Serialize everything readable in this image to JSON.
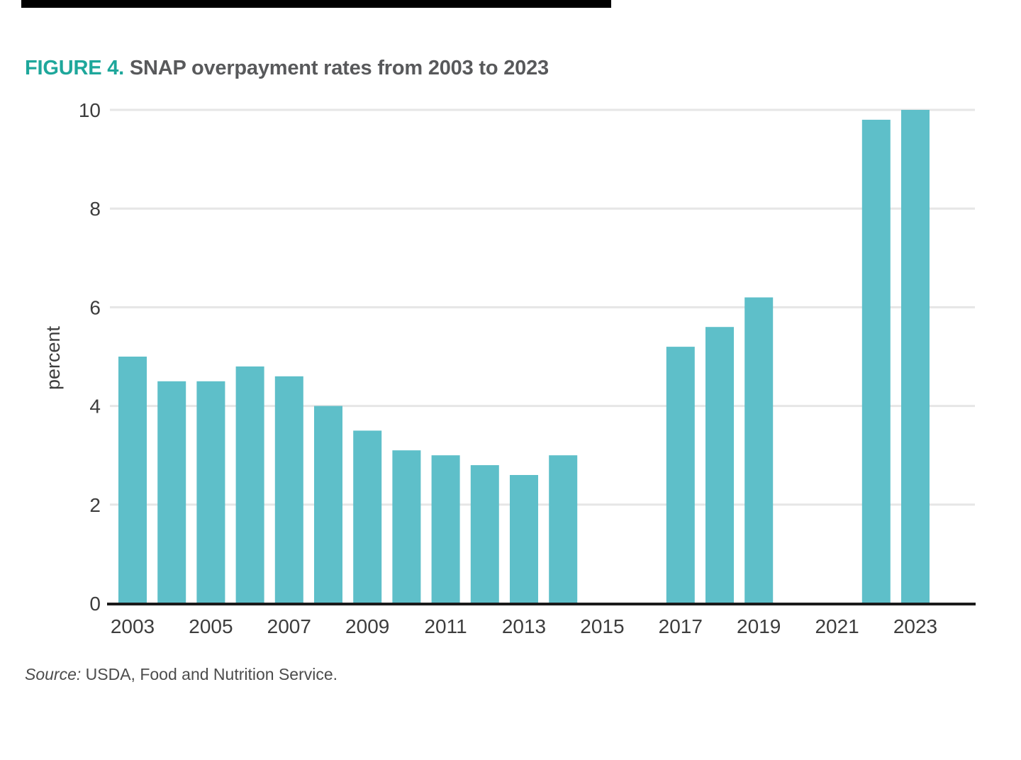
{
  "page": {
    "title_prefix": "FIGURE 4.",
    "title_text": " SNAP overpayment rates from 2003 to 2023",
    "source_prefix": "Source:",
    "source_text": " USDA, Food and Nutrition Service."
  },
  "colors": {
    "accent_teal": "#1ea79b",
    "title_gray": "#58595b",
    "bar_fill": "#5ebfc9",
    "axis_text": "#3d3d3d",
    "gridline": "#e6e6e6",
    "axis_line": "#1a1a1a",
    "top_rule": "#000000"
  },
  "chart_data": {
    "type": "bar",
    "title": "SNAP overpayment rates from 2003 to 2023",
    "xlabel": "",
    "ylabel": "percent",
    "ylim": [
      0,
      10
    ],
    "yticks": [
      0,
      2,
      4,
      6,
      8,
      10
    ],
    "xtick_labels": [
      "2003",
      "2005",
      "2007",
      "2009",
      "2011",
      "2013",
      "2015",
      "2017",
      "2019",
      "2021",
      "2023"
    ],
    "grid": true,
    "legend": false,
    "categories": [
      2003,
      2004,
      2005,
      2006,
      2007,
      2008,
      2009,
      2010,
      2011,
      2012,
      2013,
      2014,
      2015,
      2016,
      2017,
      2018,
      2019,
      2020,
      2021,
      2022,
      2023
    ],
    "values": [
      5.0,
      4.5,
      4.5,
      4.8,
      4.6,
      4.0,
      3.5,
      3.1,
      3.0,
      2.8,
      2.6,
      3.0,
      null,
      null,
      5.2,
      5.6,
      6.2,
      null,
      null,
      9.8,
      10.0
    ]
  }
}
